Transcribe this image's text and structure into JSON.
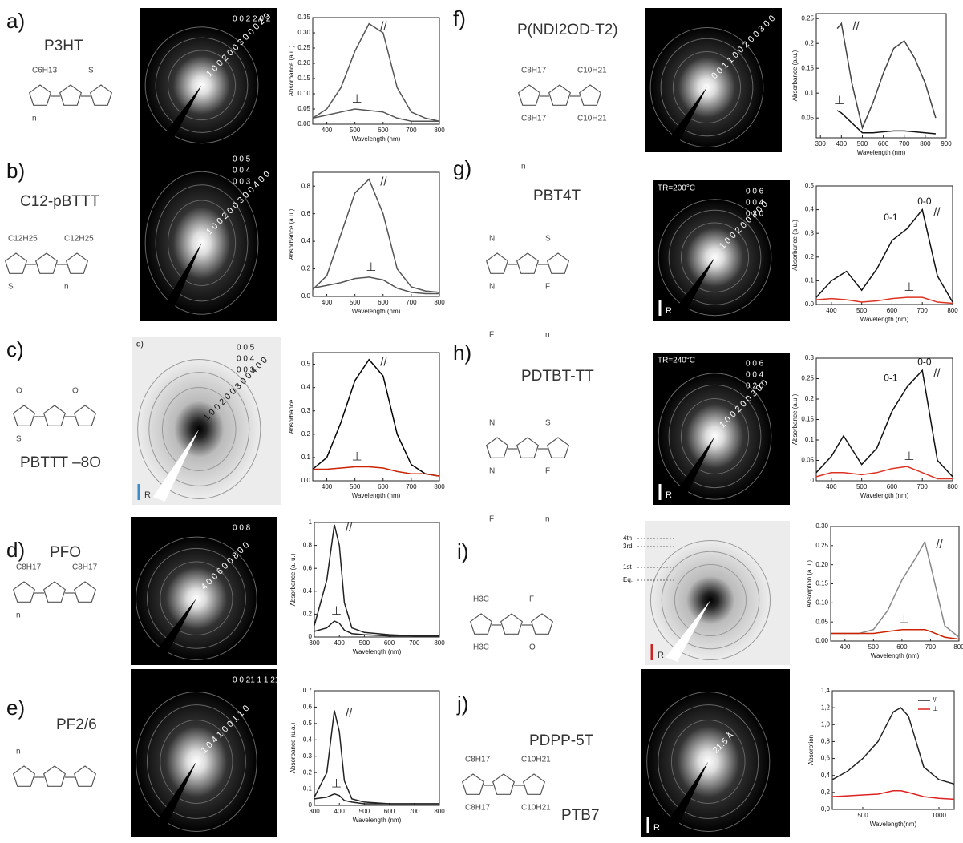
{
  "panels": [
    {
      "label": "a)",
      "name": "P3HT",
      "substituents": [
        "C6H13",
        "S",
        "n"
      ],
      "top": [
        "0 0 2   2 0 2"
      ],
      "diag": [
        "1 0 0  2 0 0  3 0 0  0 2 0"
      ],
      "light": false
    },
    {
      "label": "b)",
      "name": "C12-pBTTT",
      "substituents": [
        "C12H25",
        "C12H25",
        "S",
        "n"
      ],
      "top": [
        "0 0 5",
        "0 0 4",
        "0 0 3"
      ],
      "diag": [
        "1 0 0  2 0 0  3 0 0  4 0 0"
      ],
      "light": false
    },
    {
      "label": "c)",
      "name": "PBTTT –8O",
      "substituents": [
        "O",
        "O",
        "S"
      ],
      "top": [
        "0 0 5",
        "0 0 4",
        "0 0 3"
      ],
      "diag": [
        "1 0 0  2 0 0  3 0 0  4 0 0"
      ],
      "light": true,
      "tag": "d)",
      "arrow": "R"
    },
    {
      "label": "d)",
      "name": "PFO",
      "substituents": [
        "C8H17",
        "C8H17",
        "n"
      ],
      "top": [
        "0 0 8"
      ],
      "diag": [
        "4 0 0  6 0 0  8 0 0"
      ],
      "light": false
    },
    {
      "label": "e)",
      "name": "PF2/6",
      "substituents": [
        "n"
      ],
      "top": [
        "0 0 21   1 1 21"
      ],
      "diag": [
        "1 0 4  1 0 0  1 1 0"
      ],
      "light": false
    },
    {
      "label": "f)",
      "name": "P(NDI2OD-T2)",
      "substituents": [
        "C8H17",
        "C10H21",
        "C8H17",
        "C10H21",
        "n"
      ],
      "top": [],
      "diag": [
        "0 0 1  1 0 0  2 0 0  3 0 0"
      ],
      "light": false
    },
    {
      "label": "g)",
      "name": "PBT4T",
      "substituents": [
        "N",
        "S",
        "N",
        "F",
        "F",
        "n"
      ],
      "top": [
        "0 0 6",
        "0 0 4",
        "0 2 0"
      ],
      "diag": [
        "1 0 0  2 0 0  3 0 0"
      ],
      "light": false,
      "tag": "TR=200°C",
      "arrow": "R"
    },
    {
      "label": "h)",
      "name": "PDTBT-TT",
      "substituents": [
        "N",
        "S",
        "N",
        "F",
        "F",
        "n"
      ],
      "top": [
        "0 0 6",
        "0 0 4",
        "0 2 0"
      ],
      "diag": [
        "1 0 0  2 0 0  3 0 0"
      ],
      "light": false,
      "tag": "TR=240°C",
      "arrow": "R"
    },
    {
      "label": "i)",
      "name": "PTB7",
      "substituents": [
        "H3C",
        "F",
        "H3C",
        "O"
      ],
      "top": [],
      "diag": [],
      "light": true,
      "arrow": "R",
      "orders": [
        "4th",
        "3rd",
        "1st",
        "Eq."
      ]
    },
    {
      "label": "j)",
      "name": "PDPP-5T",
      "substituents": [
        "C8H17",
        "C10H21",
        "C8H17",
        "C10H21"
      ],
      "top": [],
      "diag": [
        "21.5 Å"
      ],
      "light": false,
      "arrow": "R"
    }
  ],
  "chart_data": [
    {
      "type": "line",
      "xlabel": "Wavelength (nm)",
      "ylabel": "Absorbance (a.u.)",
      "x": [
        350,
        400,
        450,
        500,
        550,
        600,
        650,
        700,
        750,
        800
      ],
      "series": [
        {
          "name": "//",
          "color": "#555555",
          "values": [
            0.02,
            0.05,
            0.12,
            0.24,
            0.33,
            0.3,
            0.12,
            0.04,
            0.02,
            0.01
          ]
        },
        {
          "name": "⊥",
          "color": "#555555",
          "values": [
            0.02,
            0.03,
            0.04,
            0.05,
            0.045,
            0.04,
            0.02,
            0.01,
            0.01,
            0.01
          ]
        }
      ],
      "xlim": [
        350,
        800
      ],
      "ylim": [
        0,
        0.35
      ],
      "xticks": [
        400,
        500,
        600,
        700,
        800
      ],
      "yticks": [
        {
          "value": 0,
          "label": "0.00"
        },
        0.05,
        {
          "value": 0.1,
          "label": "0.10"
        },
        0.15,
        {
          "value": 0.2,
          "label": "0.20"
        },
        0.25,
        {
          "value": 0.3,
          "label": "0.30"
        },
        0.35
      ]
    },
    {
      "type": "line",
      "xlabel": "Wavelength (nm)",
      "ylabel": "Absorbance (a.u.)",
      "x": [
        350,
        400,
        450,
        500,
        550,
        600,
        650,
        700,
        750,
        800
      ],
      "series": [
        {
          "name": "//",
          "color": "#555555",
          "values": [
            0.05,
            0.15,
            0.45,
            0.75,
            0.85,
            0.6,
            0.2,
            0.07,
            0.04,
            0.03
          ]
        },
        {
          "name": "⊥",
          "color": "#555555",
          "values": [
            0.06,
            0.08,
            0.1,
            0.13,
            0.14,
            0.12,
            0.06,
            0.03,
            0.02,
            0.02
          ]
        }
      ],
      "xlim": [
        350,
        800
      ],
      "ylim": [
        0,
        0.9
      ],
      "xticks": [
        400,
        500,
        600,
        700,
        800
      ],
      "yticks": [
        {
          "value": 0,
          "label": "0.0"
        },
        0.2,
        0.4,
        0.6,
        0.8
      ]
    },
    {
      "type": "line",
      "xlabel": "Wavelength (nm)",
      "ylabel": "Absorbance",
      "x": [
        350,
        400,
        450,
        500,
        550,
        600,
        650,
        700,
        750,
        800
      ],
      "series": [
        {
          "name": "//",
          "color": "#000000",
          "values": [
            0.05,
            0.1,
            0.25,
            0.43,
            0.52,
            0.45,
            0.2,
            0.07,
            0.03,
            0.02
          ]
        },
        {
          "name": "⊥",
          "color": "#cc2200",
          "values": [
            0.05,
            0.05,
            0.055,
            0.06,
            0.06,
            0.055,
            0.04,
            0.03,
            0.03,
            0.02
          ]
        }
      ],
      "xlim": [
        350,
        800
      ],
      "ylim": [
        0,
        0.55
      ],
      "xticks": [
        400,
        500,
        600,
        700,
        800
      ],
      "yticks": [
        {
          "value": 0,
          "label": "0.0"
        },
        0.1,
        0.2,
        0.3,
        0.4,
        0.5
      ]
    },
    {
      "type": "line",
      "xlabel": "Wavelength (nm)",
      "ylabel": "Absorbance (a. u.)",
      "x": [
        300,
        350,
        380,
        400,
        420,
        450,
        500,
        600,
        700,
        800
      ],
      "series": [
        {
          "name": "//",
          "color": "#222222",
          "values": [
            0.1,
            0.5,
            0.98,
            0.8,
            0.3,
            0.08,
            0.04,
            0.02,
            0.01,
            0.01
          ]
        },
        {
          "name": "⊥",
          "color": "#222222",
          "values": [
            0.05,
            0.08,
            0.14,
            0.12,
            0.06,
            0.03,
            0.02,
            0.01,
            0.01,
            0.01
          ]
        }
      ],
      "xlim": [
        300,
        800
      ],
      "ylim": [
        0,
        1
      ],
      "xticks": [
        300,
        400,
        500,
        600,
        700,
        800
      ],
      "yticks": [
        0,
        0.2,
        0.4,
        0.6,
        0.8,
        1
      ]
    },
    {
      "type": "line",
      "xlabel": "Wavelength (nm)",
      "ylabel": "Absorbance (u.a.)",
      "x": [
        300,
        350,
        380,
        400,
        420,
        450,
        500,
        600,
        700,
        800
      ],
      "series": [
        {
          "name": "//",
          "color": "#222222",
          "values": [
            0.05,
            0.2,
            0.58,
            0.45,
            0.15,
            0.04,
            0.02,
            0.01,
            0.01,
            0.01
          ]
        },
        {
          "name": "⊥",
          "color": "#222222",
          "values": [
            0.04,
            0.05,
            0.07,
            0.06,
            0.03,
            0.02,
            0.01,
            0.01,
            0.01,
            0.01
          ]
        }
      ],
      "xlim": [
        300,
        800
      ],
      "ylim": [
        0,
        0.7
      ],
      "xticks": [
        300,
        400,
        500,
        600,
        700,
        800
      ],
      "yticks": [
        0,
        0.1,
        0.2,
        0.3,
        0.4,
        0.5,
        0.6,
        0.7
      ]
    },
    {
      "type": "line",
      "xlabel": "Wavelength (nm)",
      "ylabel": "Absorbance (a.u.)",
      "x": [
        380,
        400,
        450,
        500,
        550,
        600,
        650,
        700,
        750,
        800,
        850
      ],
      "series": [
        {
          "name": "//",
          "color": "#444444",
          "values": [
            0.23,
            0.24,
            0.12,
            0.03,
            0.08,
            0.14,
            0.19,
            0.205,
            0.17,
            0.12,
            0.05
          ]
        },
        {
          "name": "⊥",
          "color": "#111111",
          "values": [
            0.065,
            0.06,
            0.04,
            0.02,
            0.02,
            0.022,
            0.024,
            0.024,
            0.022,
            0.02,
            0.018
          ]
        }
      ],
      "xlim": [
        280,
        900
      ],
      "ylim": [
        0.01,
        0.26
      ],
      "xticks": [
        300,
        400,
        500,
        600,
        700,
        800,
        900
      ],
      "yticks": [
        0.05,
        0.1,
        0.15,
        0.2,
        0.25
      ]
    },
    {
      "type": "line",
      "xlabel": "Wavelength (nm)",
      "ylabel": "Absorbance (a.u.)",
      "x": [
        350,
        400,
        450,
        500,
        550,
        600,
        650,
        700,
        750,
        800
      ],
      "series": [
        {
          "name": "//",
          "color": "#111111",
          "values": [
            0.03,
            0.1,
            0.14,
            0.06,
            0.15,
            0.27,
            0.32,
            0.4,
            0.12,
            0.01
          ]
        },
        {
          "name": "⊥",
          "color": "#dd3322",
          "values": [
            0.02,
            0.025,
            0.02,
            0.01,
            0.015,
            0.025,
            0.03,
            0.03,
            0.01,
            0.005
          ]
        }
      ],
      "annotations": [
        "0-1",
        "0-0"
      ],
      "xlim": [
        350,
        800
      ],
      "ylim": [
        0,
        0.5
      ],
      "xticks": [
        400,
        500,
        600,
        700,
        800
      ],
      "yticks": [
        {
          "value": 0,
          "label": "0.0"
        },
        0.1,
        0.2,
        0.3,
        0.4,
        0.5
      ]
    },
    {
      "type": "line",
      "xlabel": "Wavelength (nm)",
      "ylabel": "Absorbance (a.u.)",
      "x": [
        350,
        400,
        440,
        500,
        550,
        600,
        650,
        700,
        750,
        800
      ],
      "series": [
        {
          "name": "//",
          "color": "#111111",
          "values": [
            0.02,
            0.06,
            0.11,
            0.04,
            0.08,
            0.17,
            0.23,
            0.27,
            0.05,
            0.01
          ]
        },
        {
          "name": "⊥",
          "color": "#dd3322",
          "values": [
            0.01,
            0.02,
            0.02,
            0.015,
            0.02,
            0.03,
            0.035,
            0.02,
            0.005,
            0.005
          ]
        }
      ],
      "annotations": [
        "0-1",
        "0-0"
      ],
      "xlim": [
        350,
        800
      ],
      "ylim": [
        0,
        0.3
      ],
      "xticks": [
        400,
        500,
        600,
        700,
        800
      ],
      "yticks": [
        0,
        0.05,
        0.1,
        0.15,
        0.2,
        0.25,
        0.3
      ]
    },
    {
      "type": "line",
      "xlabel": "Wavelength (nm)",
      "ylabel": "Absorption (a.u.)",
      "x": [
        350,
        400,
        450,
        500,
        550,
        600,
        650,
        680,
        700,
        750,
        800
      ],
      "series": [
        {
          "name": "//",
          "color": "#888888",
          "values": [
            0.02,
            0.02,
            0.02,
            0.03,
            0.08,
            0.16,
            0.22,
            0.26,
            0.2,
            0.04,
            0.01
          ]
        },
        {
          "name": "⊥",
          "color": "#cc2200",
          "values": [
            0.02,
            0.02,
            0.02,
            0.02,
            0.025,
            0.03,
            0.03,
            0.03,
            0.025,
            0.01,
            0.005
          ]
        }
      ],
      "xlim": [
        350,
        800
      ],
      "ylim": [
        0,
        0.3
      ],
      "xticks": [
        400,
        500,
        600,
        700,
        800
      ],
      "yticks": [
        {
          "value": 0,
          "label": "0.00"
        },
        0.05,
        {
          "value": 0.1,
          "label": "0.10"
        },
        0.15,
        {
          "value": 0.2,
          "label": "0.20"
        },
        0.25,
        {
          "value": 0.3,
          "label": "0.30"
        }
      ]
    },
    {
      "type": "line",
      "xlabel": "Wavelength(nm)",
      "ylabel": "Absorption",
      "legend": true,
      "x": [
        300,
        400,
        500,
        600,
        700,
        750,
        800,
        900,
        1000,
        1100
      ],
      "series": [
        {
          "name": "//",
          "color": "#222222",
          "values": [
            0.35,
            0.45,
            0.6,
            0.8,
            1.15,
            1.2,
            1.1,
            0.5,
            0.35,
            0.3
          ]
        },
        {
          "name": "⊥",
          "color": "#dd2222",
          "values": [
            0.15,
            0.16,
            0.17,
            0.18,
            0.22,
            0.22,
            0.2,
            0.15,
            0.13,
            0.12
          ]
        }
      ],
      "xlim": [
        300,
        1100
      ],
      "ylim": [
        0,
        1.4
      ],
      "xticks": [
        500,
        1000
      ],
      "yticks": [
        {
          "value": 0,
          "label": "0,0"
        },
        {
          "value": 0.2,
          "label": "0,2"
        },
        {
          "value": 0.4,
          "label": "0,4"
        },
        {
          "value": 0.6,
          "label": "0,6"
        },
        {
          "value": 0.8,
          "label": "0,8"
        },
        {
          "value": 1,
          "label": "1,0"
        },
        {
          "value": 1.2,
          "label": "1,2"
        },
        {
          "value": 1.4,
          "label": "1,4"
        }
      ]
    }
  ]
}
